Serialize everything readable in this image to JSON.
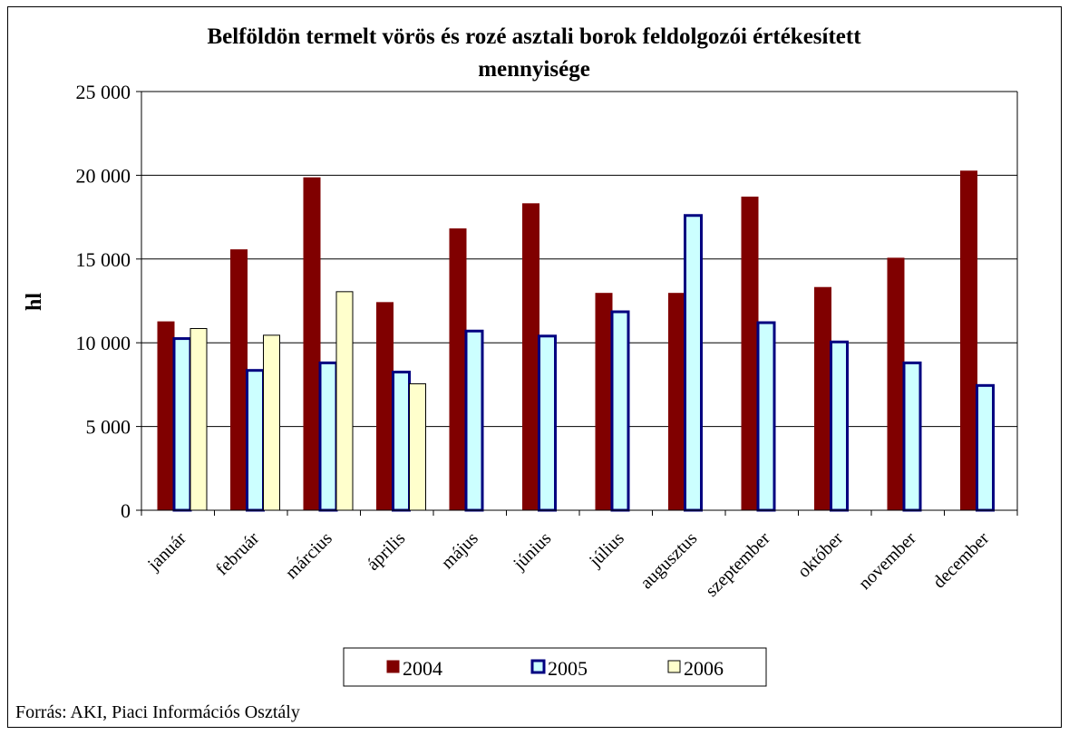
{
  "chart_data": {
    "type": "bar",
    "title_lines": [
      "Belföldön termelt vörös és rozé asztali borok feldolgozói értékesített",
      "mennyisége"
    ],
    "ylabel": "hl",
    "xlabel": "",
    "ylim": [
      0,
      25000
    ],
    "yticks": [
      0,
      5000,
      10000,
      15000,
      20000,
      25000
    ],
    "ytick_labels": [
      "0",
      "5 000",
      "10 000",
      "15 000",
      "20 000",
      "25 000"
    ],
    "grid": true,
    "legend_position": "bottom",
    "categories": [
      "január",
      "február",
      "március",
      "április",
      "május",
      "június",
      "július",
      "augusztus",
      "szeptember",
      "október",
      "november",
      "december"
    ],
    "series": [
      {
        "name": "2004",
        "color": "#800000",
        "border": "#800000",
        "values": [
          11250,
          15550,
          19850,
          12400,
          16800,
          18300,
          12950,
          12950,
          18700,
          13300,
          15050,
          20250
        ]
      },
      {
        "name": "2005",
        "color": "#ccffff",
        "border": "#000080",
        "values": [
          10250,
          8350,
          8800,
          8250,
          10700,
          10400,
          11850,
          17600,
          11200,
          10050,
          8800,
          7450
        ]
      },
      {
        "name": "2006",
        "color": "#ffffcc",
        "border": "#000000",
        "values": [
          10850,
          10450,
          13050,
          7550,
          null,
          null,
          null,
          null,
          null,
          null,
          null,
          null
        ]
      }
    ],
    "source": "Forrás: AKI, Piaci Információs Osztály"
  }
}
